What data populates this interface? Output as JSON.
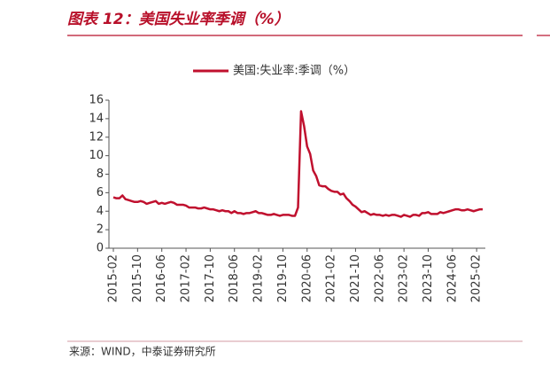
{
  "chart_data": {
    "type": "line",
    "title": "图表 12：美国失业率季调（%）",
    "source": "来源：WIND，中泰证券研究所",
    "categories": [
      "2015-02",
      null,
      null,
      null,
      null,
      null,
      null,
      null,
      "2015-10",
      null,
      null,
      null,
      null,
      null,
      null,
      null,
      "2016-06",
      null,
      null,
      null,
      null,
      null,
      null,
      null,
      "2017-02",
      null,
      null,
      null,
      null,
      null,
      null,
      null,
      "2017-10",
      null,
      null,
      null,
      null,
      null,
      null,
      null,
      "2018-06",
      null,
      null,
      null,
      null,
      null,
      null,
      null,
      "2019-02",
      null,
      null,
      null,
      null,
      null,
      null,
      null,
      "2019-10",
      null,
      null,
      null,
      null,
      null,
      null,
      null,
      "2020-06",
      null,
      null,
      null,
      null,
      null,
      null,
      null,
      "2021-02",
      null,
      null,
      null,
      null,
      null,
      null,
      null,
      "2021-10",
      null,
      null,
      null,
      null,
      null,
      null,
      null,
      "2022-06",
      null,
      null,
      null,
      null,
      null,
      null,
      null,
      "2023-02",
      null,
      null,
      null,
      null,
      null,
      null,
      null,
      "2023-10",
      null,
      null,
      null,
      null,
      null,
      null,
      null,
      "2024-06",
      null,
      null,
      null,
      null,
      null,
      null,
      null,
      "2025-02",
      null,
      null
    ],
    "series": [
      {
        "name": "美国:失业率:季调（%）",
        "color": "#c0102e",
        "values": [
          5.5,
          5.4,
          5.4,
          5.7,
          5.3,
          5.2,
          5.1,
          5.0,
          5.0,
          5.1,
          5.0,
          4.8,
          4.9,
          5.0,
          5.1,
          4.8,
          4.9,
          4.8,
          4.9,
          5.0,
          4.9,
          4.7,
          4.7,
          4.7,
          4.6,
          4.4,
          4.4,
          4.4,
          4.3,
          4.3,
          4.4,
          4.3,
          4.2,
          4.2,
          4.1,
          4.0,
          4.1,
          4.0,
          4.0,
          3.8,
          4.0,
          3.8,
          3.8,
          3.7,
          3.8,
          3.8,
          3.9,
          4.0,
          3.8,
          3.8,
          3.7,
          3.6,
          3.6,
          3.7,
          3.6,
          3.5,
          3.6,
          3.6,
          3.6,
          3.5,
          3.5,
          4.4,
          14.8,
          13.2,
          11.0,
          10.2,
          8.4,
          7.8,
          6.8,
          6.7,
          6.7,
          6.4,
          6.2,
          6.1,
          6.1,
          5.8,
          5.9,
          5.4,
          5.1,
          4.7,
          4.5,
          4.2,
          3.9,
          4.0,
          3.8,
          3.6,
          3.7,
          3.6,
          3.6,
          3.5,
          3.6,
          3.5,
          3.6,
          3.6,
          3.5,
          3.4,
          3.6,
          3.5,
          3.4,
          3.6,
          3.6,
          3.5,
          3.8,
          3.8,
          3.9,
          3.7,
          3.7,
          3.7,
          3.9,
          3.8,
          3.9,
          4.0,
          4.1,
          4.2,
          4.2,
          4.1,
          4.1,
          4.2,
          4.1,
          4.0,
          4.1,
          4.2,
          4.2
        ]
      }
    ],
    "ylim": [
      0,
      16
    ],
    "yticks": [
      0,
      2,
      4,
      6,
      8,
      10,
      12,
      14,
      16
    ],
    "grid": false,
    "legend": "top"
  }
}
